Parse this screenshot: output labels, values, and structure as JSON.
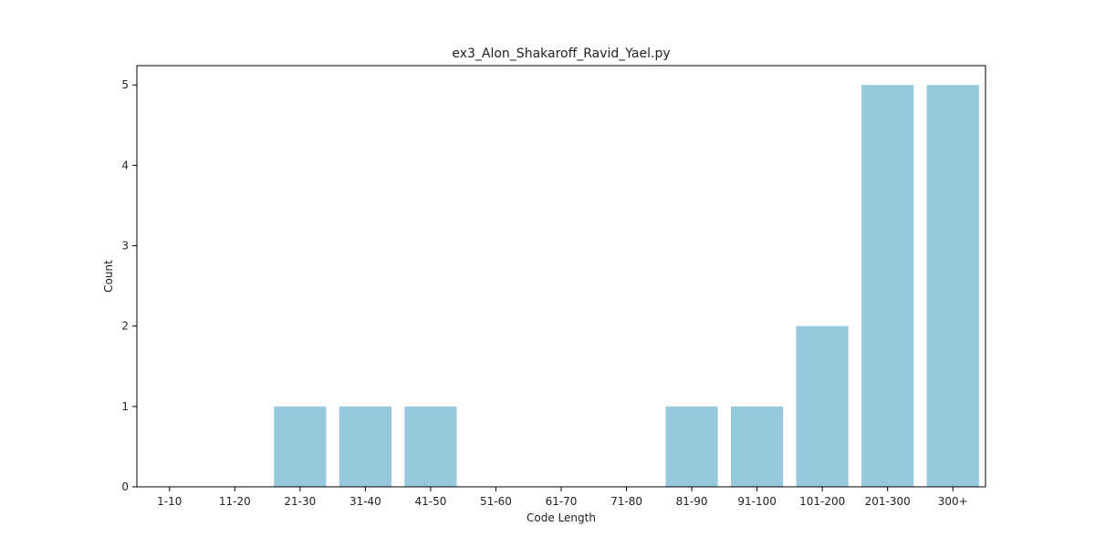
{
  "chart_data": {
    "type": "bar",
    "title": "ex3_Alon_Shakaroff_Ravid_Yael.py",
    "xlabel": "Code Length",
    "ylabel": "Count",
    "categories": [
      "1-10",
      "11-20",
      "21-30",
      "31-40",
      "41-50",
      "51-60",
      "61-70",
      "71-80",
      "81-90",
      "91-100",
      "101-200",
      "201-300",
      "300+"
    ],
    "values": [
      0,
      0,
      1,
      1,
      1,
      0,
      0,
      0,
      1,
      1,
      2,
      5,
      5
    ],
    "ylim": [
      0,
      5.24
    ],
    "yticks": [
      "0",
      "1",
      "2",
      "3",
      "4",
      "5"
    ],
    "bar_color": "#96c9de",
    "grid": false
  }
}
